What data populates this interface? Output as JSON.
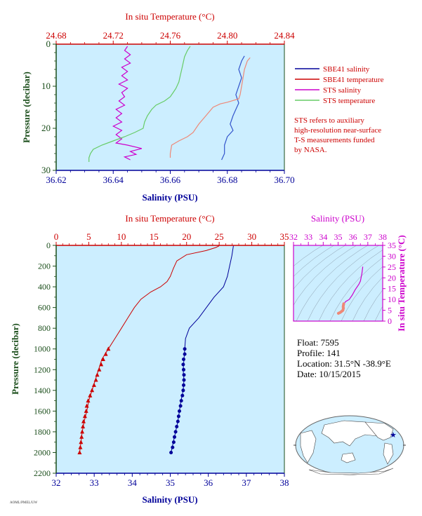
{
  "colors": {
    "temperature": "#cc0000",
    "salinity": "#000099",
    "sts_salinity": "#cc00cc",
    "sts_temperature": "#66cc66",
    "pressure": "#1a4d1a",
    "plot_bg": "#cceeff",
    "ts_salinity": "#cc00cc",
    "sbe_temp_light": "#ee8877",
    "sbe_sal_light": "#3355cc"
  },
  "legend": {
    "items": [
      {
        "label": "SBE41 salinity",
        "color": "#000099"
      },
      {
        "label": "SBE41 temperature",
        "color": "#cc0000"
      },
      {
        "label": "STS salinity",
        "color": "#cc00cc"
      },
      {
        "label": "STS temperature",
        "color": "#66cc66"
      }
    ],
    "note_lines": [
      "STS refers to auxiliary",
      "high-resolution near-surface",
      "T-S measurements funded",
      "by NASA."
    ]
  },
  "info": {
    "float": "Float:  7595",
    "profile": "Profile:  141",
    "location": "Location:  31.5°N  -38.9°E",
    "date": "Date:  10/15/2015"
  },
  "footer_id": "AOML/PMEL/UW",
  "chart_data": [
    {
      "id": "near-surface",
      "type": "line",
      "top_label": "In situ Temperature (°C)",
      "top_ticks": [
        "24.68",
        "24.72",
        "24.76",
        "24.80",
        "24.84"
      ],
      "top_range": [
        24.68,
        24.84
      ],
      "xlabel": "Salinity (PSU)",
      "x_ticks": [
        "36.62",
        "36.64",
        "36.66",
        "36.68",
        "36.70"
      ],
      "x_range": [
        36.62,
        36.7
      ],
      "ylabel": "Pressure (decibar)",
      "y_ticks": [
        "0",
        "10",
        "20",
        "30"
      ],
      "y_range": [
        0,
        30
      ],
      "series": [
        {
          "name": "SBE41 salinity",
          "axis": "salinity",
          "color_key": "sbe_sal_light",
          "points": [
            [
              36.686,
              2.8
            ],
            [
              36.685,
              4.0
            ],
            [
              36.684,
              6.0
            ],
            [
              36.685,
              8.0
            ],
            [
              36.684,
              10.0
            ],
            [
              36.683,
              12.0
            ],
            [
              36.684,
              14.0
            ],
            [
              36.683,
              15.5
            ],
            [
              36.682,
              17.0
            ],
            [
              36.681,
              19.0
            ],
            [
              36.682,
              20.5
            ],
            [
              36.68,
              22.0
            ],
            [
              36.679,
              24.0
            ],
            [
              36.679,
              26.0
            ],
            [
              36.678,
              27.5
            ]
          ]
        },
        {
          "name": "SBE41 temperature",
          "axis": "temperature",
          "color_key": "sbe_temp_light",
          "points": [
            [
              24.816,
              3.2
            ],
            [
              24.814,
              4.0
            ],
            [
              24.812,
              6.0
            ],
            [
              24.811,
              8.0
            ],
            [
              24.81,
              10.0
            ],
            [
              24.809,
              12.0
            ],
            [
              24.808,
              13.0
            ],
            [
              24.8,
              13.8
            ],
            [
              24.795,
              14.2
            ],
            [
              24.79,
              15.0
            ],
            [
              24.785,
              17.0
            ],
            [
              24.78,
              19.0
            ],
            [
              24.776,
              21.0
            ],
            [
              24.772,
              22.0
            ],
            [
              24.766,
              23.0
            ],
            [
              24.761,
              24.0
            ],
            [
              24.76,
              26.0
            ],
            [
              24.76,
              27.0
            ]
          ]
        },
        {
          "name": "STS salinity",
          "axis": "salinity",
          "color_key": "sts_salinity",
          "points": [
            [
              36.645,
              0.5
            ],
            [
              36.644,
              1.5
            ],
            [
              36.646,
              2.5
            ],
            [
              36.644,
              3.5
            ],
            [
              36.646,
              4.5
            ],
            [
              36.643,
              5.5
            ],
            [
              36.645,
              6.5
            ],
            [
              36.643,
              7.5
            ],
            [
              36.645,
              8.5
            ],
            [
              36.642,
              9.5
            ],
            [
              36.645,
              10.5
            ],
            [
              36.643,
              11.5
            ],
            [
              36.644,
              12.5
            ],
            [
              36.642,
              13.5
            ],
            [
              36.644,
              14.5
            ],
            [
              36.641,
              15.5
            ],
            [
              36.643,
              16.5
            ],
            [
              36.641,
              17.5
            ],
            [
              36.643,
              18.5
            ],
            [
              36.64,
              19.5
            ],
            [
              36.643,
              20.5
            ],
            [
              36.641,
              21.5
            ],
            [
              36.643,
              22.5
            ],
            [
              36.641,
              23.5
            ],
            [
              36.645,
              24.0
            ],
            [
              36.65,
              24.8
            ],
            [
              36.646,
              25.5
            ],
            [
              36.648,
              26.2
            ],
            [
              36.644,
              26.8
            ],
            [
              36.646,
              27.5
            ]
          ]
        },
        {
          "name": "STS temperature",
          "axis": "temperature",
          "color_key": "sts_temperature",
          "points": [
            [
              24.774,
              0.5
            ],
            [
              24.772,
              1.5
            ],
            [
              24.77,
              3.0
            ],
            [
              24.769,
              4.5
            ],
            [
              24.768,
              6.0
            ],
            [
              24.767,
              7.5
            ],
            [
              24.766,
              9.0
            ],
            [
              24.764,
              10.5
            ],
            [
              24.762,
              11.5
            ],
            [
              24.76,
              12.5
            ],
            [
              24.756,
              13.5
            ],
            [
              24.75,
              14.5
            ],
            [
              24.747,
              15.5
            ],
            [
              24.744,
              17.0
            ],
            [
              24.742,
              18.5
            ],
            [
              24.741,
              20.0
            ],
            [
              24.735,
              21.0
            ],
            [
              24.728,
              22.0
            ],
            [
              24.72,
              23.0
            ],
            [
              24.712,
              24.0
            ],
            [
              24.706,
              25.0
            ],
            [
              24.704,
              26.0
            ],
            [
              24.703,
              27.0
            ],
            [
              24.703,
              28.0
            ]
          ]
        }
      ]
    },
    {
      "id": "full-profile",
      "type": "line",
      "top_label": "In situ Temperature (°C)",
      "top_ticks": [
        "0",
        "5",
        "10",
        "15",
        "20",
        "25",
        "30",
        "35"
      ],
      "top_range": [
        0,
        35
      ],
      "xlabel": "Salinity (PSU)",
      "x_ticks": [
        "32",
        "33",
        "34",
        "35",
        "36",
        "37",
        "38"
      ],
      "x_range": [
        32,
        38
      ],
      "ylabel": "Pressure (decibar)",
      "y_ticks": [
        "0",
        "200",
        "400",
        "600",
        "800",
        "1000",
        "1200",
        "1400",
        "1600",
        "1800",
        "2000",
        "2200"
      ],
      "y_range": [
        0,
        2200
      ],
      "series": [
        {
          "name": "SBE41 temperature",
          "axis": "temperature",
          "color_key": "temperature",
          "points": [
            [
              25.0,
              5
            ],
            [
              24.5,
              20
            ],
            [
              23.0,
              50
            ],
            [
              20.0,
              90
            ],
            [
              18.5,
              150
            ],
            [
              18.0,
              220
            ],
            [
              17.5,
              300
            ],
            [
              17.0,
              350
            ],
            [
              16.0,
              400
            ],
            [
              14.5,
              450
            ],
            [
              13.0,
              520
            ],
            [
              12.0,
              600
            ],
            [
              11.0,
              700
            ],
            [
              10.0,
              800
            ],
            [
              9.0,
              900
            ],
            [
              8.0,
              1000
            ],
            [
              7.5,
              1050
            ],
            [
              7.0,
              1100
            ],
            [
              6.5,
              1200
            ],
            [
              6.0,
              1300
            ],
            [
              5.5,
              1400
            ],
            [
              5.0,
              1500
            ],
            [
              4.7,
              1600
            ],
            [
              4.3,
              1700
            ],
            [
              4.0,
              1800
            ],
            [
              3.8,
              1900
            ],
            [
              3.6,
              2000
            ]
          ]
        },
        {
          "name": "SBE41 salinity",
          "axis": "salinity",
          "color_key": "salinity",
          "points": [
            [
              36.66,
              5
            ],
            [
              36.62,
              100
            ],
            [
              36.56,
              200
            ],
            [
              36.5,
              300
            ],
            [
              36.4,
              400
            ],
            [
              36.15,
              500
            ],
            [
              35.95,
              600
            ],
            [
              35.75,
              700
            ],
            [
              35.5,
              800
            ],
            [
              35.4,
              900
            ],
            [
              35.38,
              1000
            ],
            [
              35.36,
              1100
            ],
            [
              35.34,
              1200
            ],
            [
              35.36,
              1300
            ],
            [
              35.34,
              1400
            ],
            [
              35.28,
              1500
            ],
            [
              35.24,
              1600
            ],
            [
              35.2,
              1700
            ],
            [
              35.14,
              1800
            ],
            [
              35.08,
              1900
            ],
            [
              35.02,
              2000
            ]
          ]
        }
      ],
      "markers": {
        "temperature": [
          [
            8.0,
            1000
          ],
          [
            7.6,
            1050
          ],
          [
            7.2,
            1100
          ],
          [
            6.9,
            1150
          ],
          [
            6.6,
            1200
          ],
          [
            6.3,
            1250
          ],
          [
            6.1,
            1300
          ],
          [
            5.8,
            1350
          ],
          [
            5.5,
            1400
          ],
          [
            5.2,
            1450
          ],
          [
            4.9,
            1500
          ],
          [
            4.7,
            1550
          ],
          [
            4.6,
            1600
          ],
          [
            4.4,
            1650
          ],
          [
            4.2,
            1700
          ],
          [
            4.1,
            1750
          ],
          [
            4.0,
            1800
          ],
          [
            3.9,
            1850
          ],
          [
            3.8,
            1900
          ],
          [
            3.7,
            1950
          ],
          [
            3.6,
            2000
          ]
        ],
        "salinity": [
          [
            35.38,
            1000
          ],
          [
            35.38,
            1050
          ],
          [
            35.35,
            1100
          ],
          [
            35.34,
            1150
          ],
          [
            35.35,
            1200
          ],
          [
            35.36,
            1250
          ],
          [
            35.36,
            1300
          ],
          [
            35.35,
            1350
          ],
          [
            35.34,
            1400
          ],
          [
            35.32,
            1450
          ],
          [
            35.29,
            1500
          ],
          [
            35.27,
            1550
          ],
          [
            35.24,
            1600
          ],
          [
            35.22,
            1650
          ],
          [
            35.2,
            1700
          ],
          [
            35.17,
            1750
          ],
          [
            35.14,
            1800
          ],
          [
            35.11,
            1850
          ],
          [
            35.09,
            1900
          ],
          [
            35.06,
            1950
          ],
          [
            35.02,
            2000
          ]
        ]
      }
    },
    {
      "id": "ts-diagram",
      "type": "line",
      "top_label": "Salinity (PSU)",
      "top_ticks": [
        "32",
        "33",
        "34",
        "35",
        "36",
        "37",
        "38"
      ],
      "top_range": [
        32,
        38
      ],
      "right_label": "In situ Temperature (°C)",
      "right_ticks": [
        "0",
        "5",
        "10",
        "15",
        "20",
        "25",
        "30",
        "35"
      ],
      "right_range": [
        0,
        35
      ],
      "series": [
        {
          "name": "T-S profile",
          "color_key": "ts_salinity",
          "points": [
            [
              36.66,
              25.0
            ],
            [
              36.6,
              22.0
            ],
            [
              36.5,
              18.5
            ],
            [
              36.4,
              17.0
            ],
            [
              36.15,
              14.5
            ],
            [
              35.95,
              12.0
            ],
            [
              35.75,
              10.0
            ],
            [
              35.5,
              9.0
            ],
            [
              35.4,
              8.0
            ]
          ]
        },
        {
          "name": "T-S deep",
          "color_key": "sbe_temp_light",
          "points": [
            [
              35.38,
              8.0
            ],
            [
              35.35,
              7.0
            ],
            [
              35.34,
              6.5
            ],
            [
              35.36,
              6.0
            ],
            [
              35.32,
              5.0
            ],
            [
              35.24,
              4.5
            ],
            [
              35.14,
              4.0
            ],
            [
              35.02,
              3.6
            ]
          ]
        }
      ]
    }
  ]
}
